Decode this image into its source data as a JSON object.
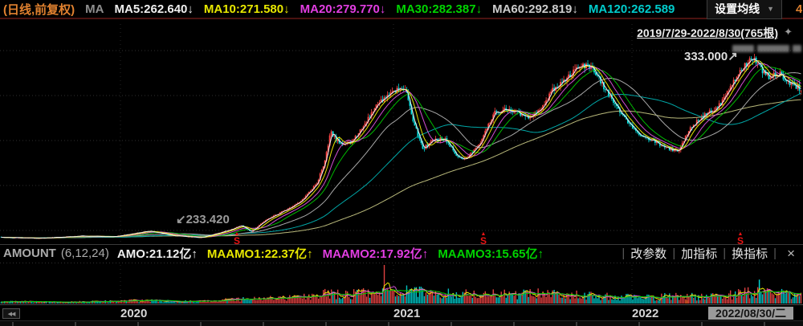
{
  "colors": {
    "background": "#000000",
    "up": "#ff4545",
    "down": "#00dcdc",
    "accent_orange": "#e0812f",
    "grid": "#303030",
    "divider_maroon": "#4a1210",
    "ma_line_colors": [
      "#b8b87a",
      "#00a8a8",
      "#a8a8a8",
      "#00bb00",
      "#d24fd2",
      "#e8e800",
      "#f0f0f0"
    ]
  },
  "top_bar": {
    "period_label": "(日线,前复权)",
    "ma_group_label": "MA",
    "ma_items": [
      {
        "label": "MA5:262.640",
        "arrow": "↓",
        "color": "#f0f0f0"
      },
      {
        "label": "MA10:271.580",
        "arrow": "↓",
        "color": "#e8e800"
      },
      {
        "label": "MA20:279.770",
        "arrow": "↓",
        "color": "#e23ee2"
      },
      {
        "label": "MA30:282.387",
        "arrow": "↓",
        "color": "#00d400"
      },
      {
        "label": "MA60:292.819",
        "arrow": "↓",
        "color": "#cccccc"
      },
      {
        "label": "MA120:262.589",
        "arrow": "",
        "color": "#00cccc"
      }
    ],
    "settings_button_label": "设置均线",
    "settings_caret": "▼",
    "corner_badge": "4"
  },
  "sub_header": {
    "date_range": "2019/7/29-2022/8/30(765根)",
    "pin_icon": "✦"
  },
  "annotations": {
    "high_label": "333.000",
    "high_arrow": "↗",
    "low_arrow": "↙",
    "low_label": "233.420",
    "event_marker_arrow": "▲",
    "event_marker_symbol": "S"
  },
  "indicator_bar": {
    "name": "AMOUNT",
    "params": "(6,12,24)",
    "items": [
      {
        "label": "AMO:21.12亿",
        "arrow": "↑",
        "color": "#f0f0f0"
      },
      {
        "label": "MAAMO1:22.37亿",
        "arrow": "↑",
        "color": "#e8e800"
      },
      {
        "label": "MAAMO2:17.92亿",
        "arrow": "↑",
        "color": "#e23ee2"
      },
      {
        "label": "MAAMO3:15.65亿",
        "arrow": "↑",
        "color": "#00d400"
      }
    ],
    "buttons": [
      "改参数",
      "加指标",
      "换指标"
    ],
    "close_label": "×"
  },
  "x_axis": {
    "rewind_label": "◀◀",
    "year_labels": [
      {
        "text": "2020",
        "x": 150
      },
      {
        "text": "2021",
        "x": 490
      },
      {
        "text": "2022",
        "x": 787
      }
    ],
    "current_date": "2022/08/30/二"
  },
  "chart_data": {
    "type": "candlestick",
    "x_range": [
      "2019/7/29",
      "2022/8/30"
    ],
    "bars_total": 765,
    "grid": true,
    "high_annotation": 333.0,
    "low_annotation": 233.42,
    "price_keypoints": [
      [
        0.0,
        226.7
      ],
      [
        0.05,
        226.2
      ],
      [
        0.1,
        227.5
      ],
      [
        0.14,
        227.0
      ],
      [
        0.185,
        230.5
      ],
      [
        0.215,
        227.7
      ],
      [
        0.25,
        226.6
      ],
      [
        0.285,
        231.0
      ],
      [
        0.3,
        233.8
      ],
      [
        0.312,
        230.0
      ],
      [
        0.33,
        236.6
      ],
      [
        0.355,
        242.8
      ],
      [
        0.375,
        248.0
      ],
      [
        0.395,
        259.0
      ],
      [
        0.405,
        272.0
      ],
      [
        0.412,
        289.0
      ],
      [
        0.418,
        285.0
      ],
      [
        0.425,
        282.0
      ],
      [
        0.437,
        282.5
      ],
      [
        0.452,
        292.0
      ],
      [
        0.47,
        305.0
      ],
      [
        0.49,
        313.6
      ],
      [
        0.505,
        315.5
      ],
      [
        0.515,
        295.6
      ],
      [
        0.527,
        279.1
      ],
      [
        0.54,
        284.0
      ],
      [
        0.555,
        285.2
      ],
      [
        0.57,
        274.4
      ],
      [
        0.58,
        272.0
      ],
      [
        0.6,
        283.8
      ],
      [
        0.617,
        300.4
      ],
      [
        0.63,
        302.7
      ],
      [
        0.645,
        300.4
      ],
      [
        0.66,
        298.0
      ],
      [
        0.675,
        302.7
      ],
      [
        0.69,
        314.5
      ],
      [
        0.71,
        321.6
      ],
      [
        0.725,
        328.7
      ],
      [
        0.74,
        326.3
      ],
      [
        0.755,
        314.5
      ],
      [
        0.775,
        300.4
      ],
      [
        0.795,
        288.6
      ],
      [
        0.815,
        283.8
      ],
      [
        0.832,
        279.5
      ],
      [
        0.847,
        277.7
      ],
      [
        0.858,
        288.6
      ],
      [
        0.87,
        295.6
      ],
      [
        0.885,
        300.4
      ],
      [
        0.895,
        302.7
      ],
      [
        0.905,
        309.8
      ],
      [
        0.92,
        321.6
      ],
      [
        0.933,
        330.0
      ],
      [
        0.941,
        332.5
      ],
      [
        0.95,
        326.3
      ],
      [
        0.96,
        321.6
      ],
      [
        0.972,
        323.9
      ],
      [
        0.982,
        319.5
      ],
      [
        1.0,
        314.5
      ]
    ],
    "event_marker_x": [
      0.295,
      0.602,
      0.922
    ],
    "year_grid_x": [
      0.15,
      0.49,
      0.787
    ],
    "volume": {
      "indicator": "AMOUNT(6,12,24)",
      "latest": "21.12亿",
      "keypoints": [
        [
          0.0,
          0.05
        ],
        [
          0.06,
          0.04
        ],
        [
          0.12,
          0.05
        ],
        [
          0.18,
          0.08
        ],
        [
          0.22,
          0.06
        ],
        [
          0.26,
          0.07
        ],
        [
          0.3,
          0.11
        ],
        [
          0.33,
          0.13
        ],
        [
          0.36,
          0.15
        ],
        [
          0.39,
          0.2
        ],
        [
          0.41,
          0.26
        ],
        [
          0.43,
          0.22
        ],
        [
          0.45,
          0.26
        ],
        [
          0.47,
          0.3
        ],
        [
          0.5,
          0.34
        ],
        [
          0.52,
          0.3
        ],
        [
          0.55,
          0.26
        ],
        [
          0.58,
          0.24
        ],
        [
          0.61,
          0.26
        ],
        [
          0.64,
          0.22
        ],
        [
          0.675,
          0.26
        ],
        [
          0.71,
          0.24
        ],
        [
          0.74,
          0.2
        ],
        [
          0.775,
          0.17
        ],
        [
          0.81,
          0.15
        ],
        [
          0.84,
          0.21
        ],
        [
          0.87,
          0.17
        ],
        [
          0.9,
          0.19
        ],
        [
          0.92,
          0.25
        ],
        [
          0.947,
          0.3
        ],
        [
          0.97,
          0.26
        ],
        [
          1.0,
          0.2
        ]
      ],
      "spikes": [
        {
          "x": 0.479,
          "h": 1.0,
          "dir": "up"
        },
        {
          "x": 0.947,
          "h": 0.62,
          "dir": "down"
        }
      ]
    }
  }
}
